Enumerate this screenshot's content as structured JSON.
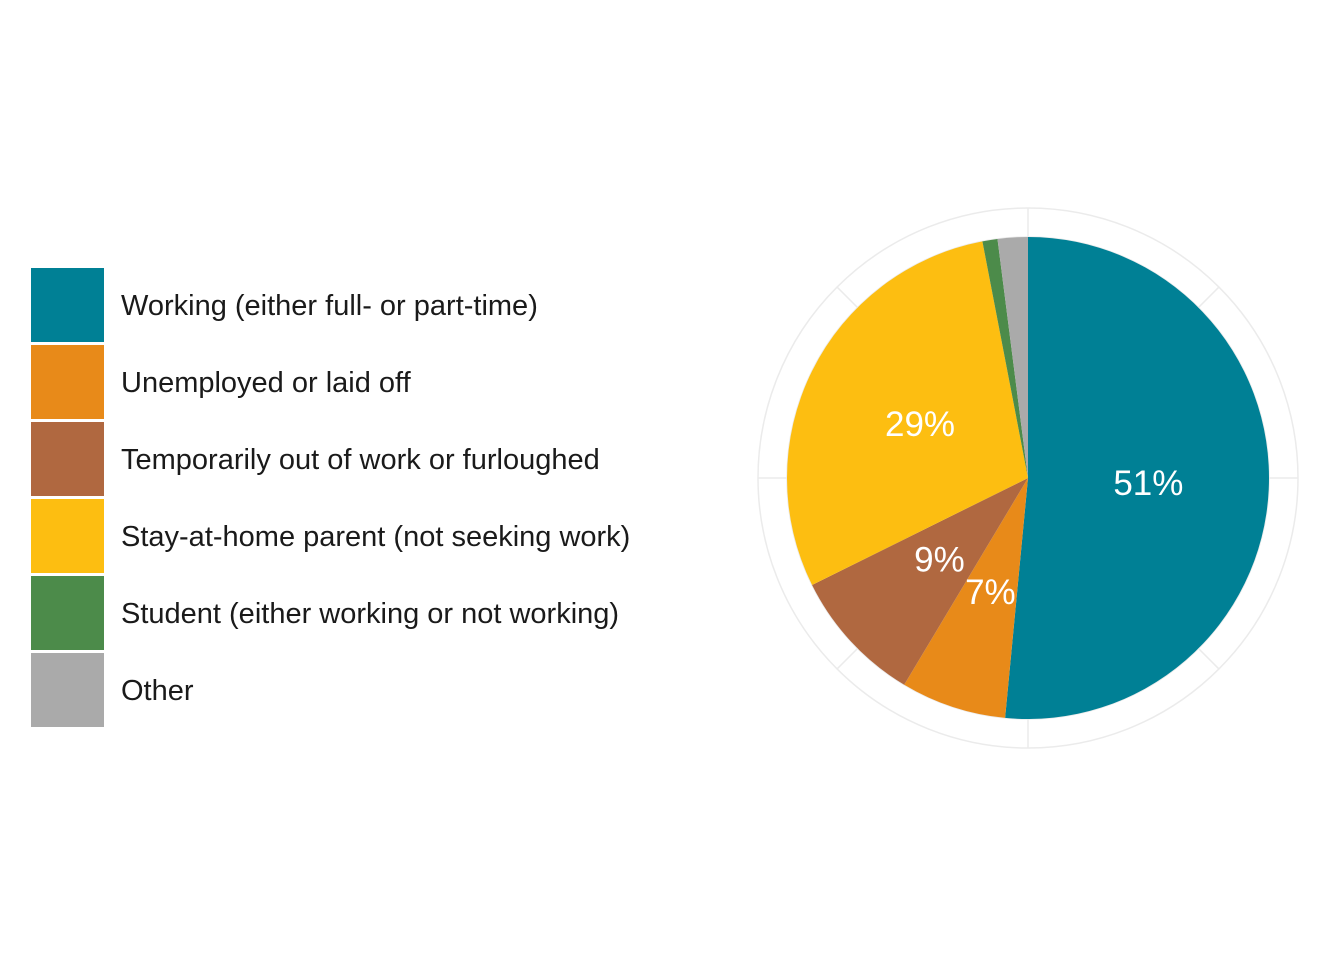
{
  "chart_data": {
    "type": "pie",
    "title": "",
    "categories": [
      "Working (either full- or part-time)",
      "Unemployed or laid off",
      "Temporarily out of work or furloughed",
      "Stay-at-home parent (not seeking work)",
      "Student (either working or not working)",
      "Other"
    ],
    "values": [
      51,
      7,
      9,
      29,
      1,
      2
    ],
    "value_labels": [
      "51%",
      "7%",
      "9%",
      "29%",
      "",
      ""
    ],
    "colors": [
      "#008095",
      "#E88A19",
      "#B06840",
      "#FDBE11",
      "#4C8B4A",
      "#AAAAAA"
    ],
    "legend_position": "left",
    "start_angle": "12 o'clock",
    "direction": "clockwise",
    "grid": true
  },
  "legend": {
    "items": [
      {
        "label": "Working (either full- or part-time)",
        "color": "#008095"
      },
      {
        "label": "Unemployed or laid off",
        "color": "#E88A19"
      },
      {
        "label": "Temporarily out of work or furloughed",
        "color": "#B06840"
      },
      {
        "label": "Stay-at-home parent (not seeking work)",
        "color": "#FDBE11"
      },
      {
        "label": "Student (either working or not working)",
        "color": "#4C8B4A"
      },
      {
        "label": "Other",
        "color": "#AAAAAA"
      }
    ]
  }
}
